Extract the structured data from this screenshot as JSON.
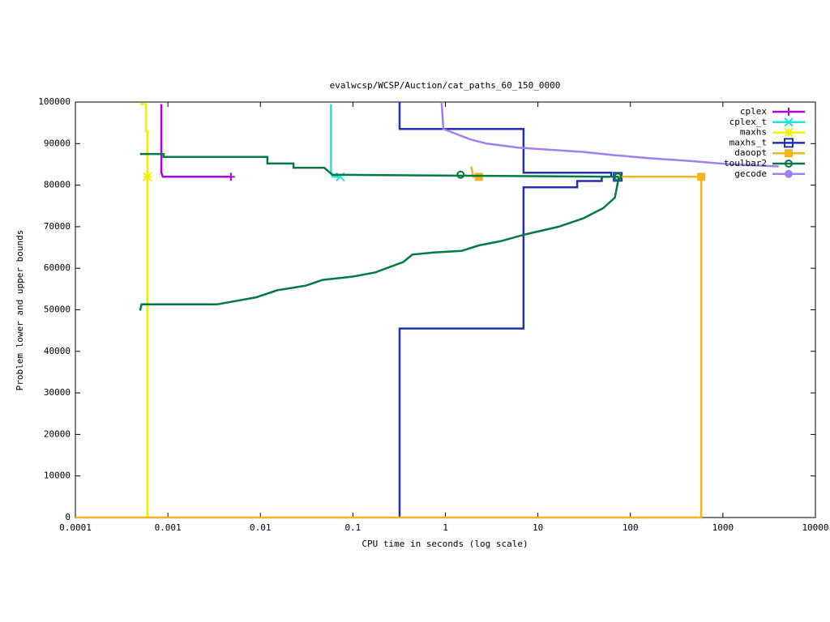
{
  "chart_data": {
    "type": "line",
    "title": "evalwcsp/WCSP/Auction/cat_paths_60_150_0000",
    "xlabel": "CPU time in seconds (log scale)",
    "ylabel": "Problem lower and upper bounds",
    "xlog": true,
    "xlim": [
      0.0001,
      10000
    ],
    "xticks": [
      0.0001,
      0.001,
      0.01,
      0.1,
      1,
      10,
      100,
      1000,
      10000
    ],
    "ylim": [
      0,
      100000
    ],
    "yticks": [
      0,
      10000,
      20000,
      30000,
      40000,
      50000,
      60000,
      70000,
      80000,
      90000,
      100000
    ],
    "legend": "top-right",
    "series": [
      {
        "name": "cplex",
        "color": "#b000e0",
        "marker": "plus",
        "x": [
          0.00085,
          0.00085,
          0.00088,
          0.0048
        ],
        "values": [
          99500,
          83000,
          82000,
          82000
        ],
        "marker_x": [
          0.0048
        ],
        "marker_y": [
          82000
        ]
      },
      {
        "name": "cplex_t",
        "color": "#20e0e0",
        "marker": "cross",
        "x": [
          0.058,
          0.058,
          0.06,
          0.073
        ],
        "values": [
          99500,
          83000,
          82000,
          82000
        ],
        "marker_x": [
          0.073
        ],
        "marker_y": [
          82000
        ]
      },
      {
        "name": "maxhs",
        "color": "#f0f000",
        "marker": "star",
        "x": [
          0.0005,
          0.00058,
          0.00058,
          0.0006,
          0.0006
        ],
        "values": [
          99500,
          99500,
          93000,
          93000,
          0
        ],
        "marker_x": [
          0.0006
        ],
        "marker_y": [
          82000
        ]
      },
      {
        "name": "maxhs_t",
        "color": "#2030b0",
        "marker": "box",
        "x": [
          0.32,
          0.32,
          7.0,
          7.0,
          26.6,
          26.6,
          49,
          49,
          73,
          null,
          0.32,
          0.32,
          7.0,
          7.0,
          62,
          62
        ],
        "values": [
          0,
          45500,
          45500,
          79500,
          79500,
          81000,
          81000,
          82000,
          82000,
          null,
          100000,
          93500,
          93500,
          83000,
          83000,
          82000
        ],
        "marker_x": [
          73
        ],
        "marker_y": [
          82000
        ]
      },
      {
        "name": "daoopt",
        "color": "#f5b41e",
        "marker": "filled-box",
        "x": [
          0.0001,
          583,
          583,
          75,
          null,
          1.9,
          2.0,
          2.3
        ],
        "values": [
          0,
          0,
          82000,
          82000,
          null,
          84500,
          82000,
          82000
        ],
        "marker_x": [
          2.3,
          583
        ],
        "marker_y": [
          82000,
          82000
        ]
      },
      {
        "name": "toulbar2",
        "color": "#007a40",
        "marker": "circle",
        "x": [
          0.0005,
          0.0009,
          0.0009,
          0.0119,
          0.0119,
          0.0228,
          0.0228,
          0.049,
          0.06,
          75,
          null,
          0.0005,
          0.00052,
          0.0034,
          0.009,
          0.0152,
          0.031,
          0.047,
          0.1,
          0.175,
          0.35,
          0.44,
          0.75,
          1.5,
          2.3,
          3.9,
          7.5,
          16.8,
          31,
          51,
          68,
          75
        ],
        "values": [
          87500,
          87500,
          86800,
          86800,
          85200,
          85200,
          84200,
          84200,
          82500,
          82000,
          null,
          49800,
          51300,
          51300,
          53000,
          54700,
          55800,
          57200,
          58000,
          59000,
          61500,
          63300,
          63800,
          64200,
          65500,
          66500,
          68200,
          70000,
          72000,
          74500,
          77000,
          82000
        ],
        "marker_x": [
          1.46,
          73
        ],
        "marker_y": [
          82500,
          82000
        ]
      },
      {
        "name": "gecode",
        "color": "#a080f0",
        "marker": "filled-circle",
        "x": [
          0.91,
          0.95,
          1.87,
          2.8,
          6.2,
          13.9,
          31,
          69,
          157,
          440,
          1200,
          4000
        ],
        "values": [
          100000,
          93500,
          91000,
          90000,
          89000,
          88500,
          88000,
          87200,
          86500,
          85800,
          85000,
          84500
        ]
      }
    ]
  }
}
